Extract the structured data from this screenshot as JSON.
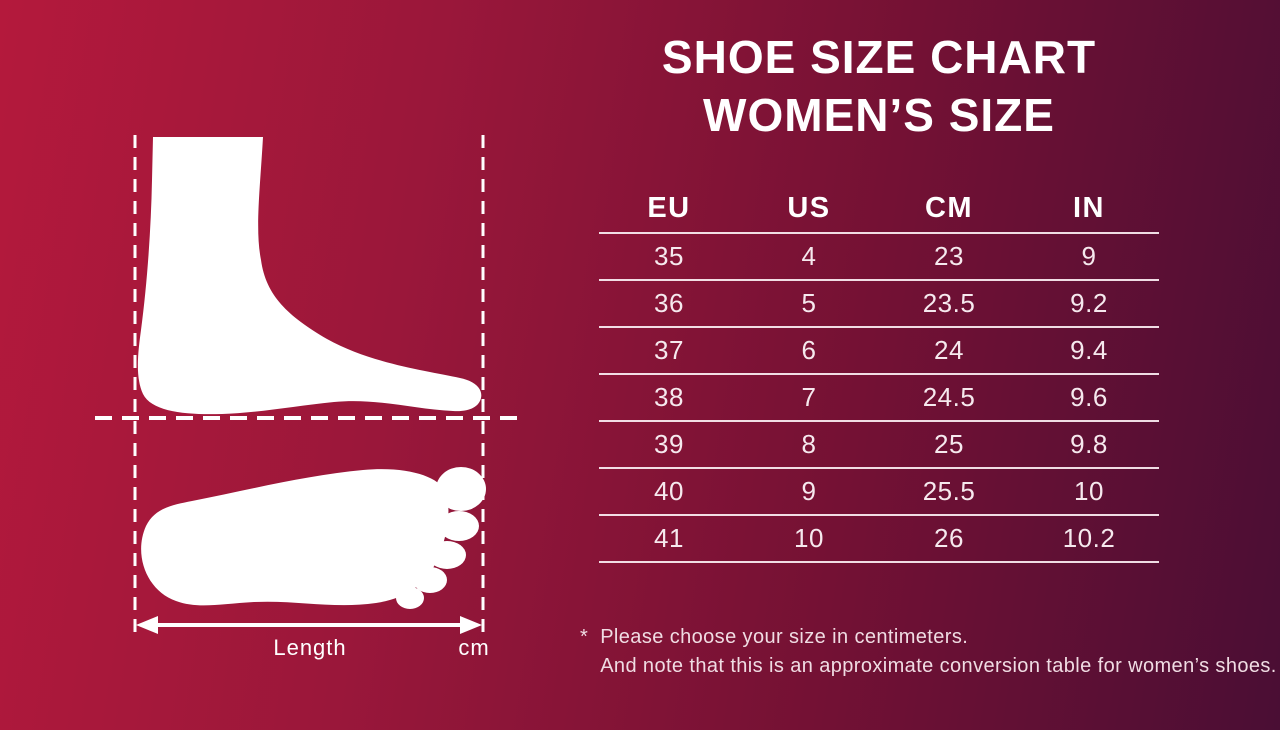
{
  "title": {
    "line1": "SHOE SIZE CHART",
    "line2": "WOMEN’S SIZE"
  },
  "chart_data": {
    "type": "table",
    "title": "SHOE SIZE CHART WOMEN’S SIZE",
    "columns": [
      "EU",
      "US",
      "CM",
      "IN"
    ],
    "rows": [
      [
        "35",
        "4",
        "23",
        "9"
      ],
      [
        "36",
        "5",
        "23.5",
        "9.2"
      ],
      [
        "37",
        "6",
        "24",
        "9.4"
      ],
      [
        "38",
        "7",
        "24.5",
        "9.6"
      ],
      [
        "39",
        "8",
        "25",
        "9.8"
      ],
      [
        "40",
        "9",
        "25.5",
        "10"
      ],
      [
        "41",
        "10",
        "26",
        "10.2"
      ]
    ],
    "layout_hints": {
      "grid": "horizontal row separators only",
      "alignment": "center"
    }
  },
  "diagram": {
    "length_label": "Length",
    "unit_label": "cm",
    "icons": [
      "foot-side-silhouette-icon",
      "footprint-silhouette-icon",
      "length-arrow-icon"
    ]
  },
  "notes": {
    "asterisk": "*",
    "line1": "Please choose your size in centimeters.",
    "line2": "And note that this is an approximate conversion table for women’s shoes."
  },
  "colors": {
    "background_left": "#b4193c",
    "background_right": "#4a0e34",
    "title_text": "#ffffff",
    "table_text": "#f6e9ee",
    "separator_line": "#f8e9ee",
    "note_text": "#f0dce3",
    "silhouette": "#ffffff"
  }
}
